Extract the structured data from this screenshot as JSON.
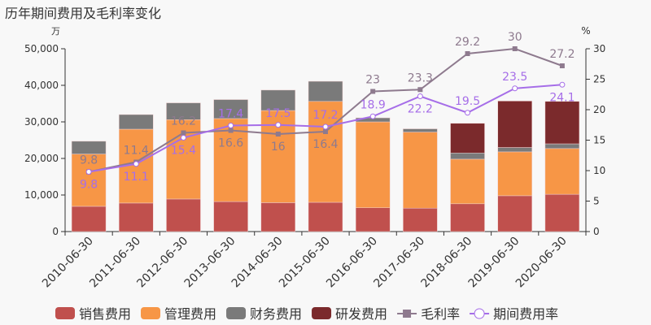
{
  "chart_data": {
    "type": "bar",
    "title": "历年期间费用及毛利率变化",
    "ylabel_left": "万",
    "ylabel_right": "%",
    "ylim_left": [
      0,
      50000
    ],
    "ylim_right": [
      0,
      30
    ],
    "yticks_left": [
      "0",
      "10,000",
      "20,000",
      "30,000",
      "40,000",
      "50,000"
    ],
    "yticks_right": [
      "0",
      "5",
      "10",
      "15",
      "20",
      "25",
      "30"
    ],
    "categories": [
      "2010-06-30",
      "2011-06-30",
      "2012-06-30",
      "2013-06-30",
      "2014-06-30",
      "2015-06-30",
      "2016-06-30",
      "2017-06-30",
      "2018-06-30",
      "2019-06-30",
      "2020-06-30"
    ],
    "legend_position": "bottom",
    "grid": false,
    "series": [
      {
        "name": "销售费用",
        "type": "bar",
        "color": "#c0504d",
        "values": [
          6900,
          7800,
          8900,
          8200,
          7900,
          8000,
          6500,
          6400,
          7600,
          9800,
          10200
        ]
      },
      {
        "name": "管理费用",
        "type": "bar",
        "color": "#f79646",
        "values": [
          14300,
          20200,
          21700,
          22700,
          25200,
          27600,
          23500,
          20800,
          12200,
          12000,
          12500
        ]
      },
      {
        "name": "财务费用",
        "type": "bar",
        "color": "#7a7a7a",
        "values": [
          3500,
          4000,
          4600,
          5200,
          5600,
          5500,
          1100,
          900,
          1700,
          1200,
          1300
        ]
      },
      {
        "name": "研发费用",
        "type": "bar",
        "color": "#7b2a2c",
        "values": [
          0,
          0,
          0,
          0,
          0,
          0,
          0,
          0,
          8100,
          12700,
          11600
        ]
      },
      {
        "name": "毛利率",
        "type": "line",
        "color": "#8e7a8e",
        "values": [
          9.8,
          11.4,
          16.2,
          16.6,
          16,
          16.4,
          23,
          23.3,
          29.2,
          30,
          27.2
        ]
      },
      {
        "name": "期间费用率",
        "type": "line",
        "color": "#a66ee8",
        "values": [
          9.8,
          11.1,
          15.4,
          17.4,
          17.5,
          17.2,
          18.9,
          22.2,
          19.5,
          23.5,
          24.1
        ]
      }
    ]
  }
}
